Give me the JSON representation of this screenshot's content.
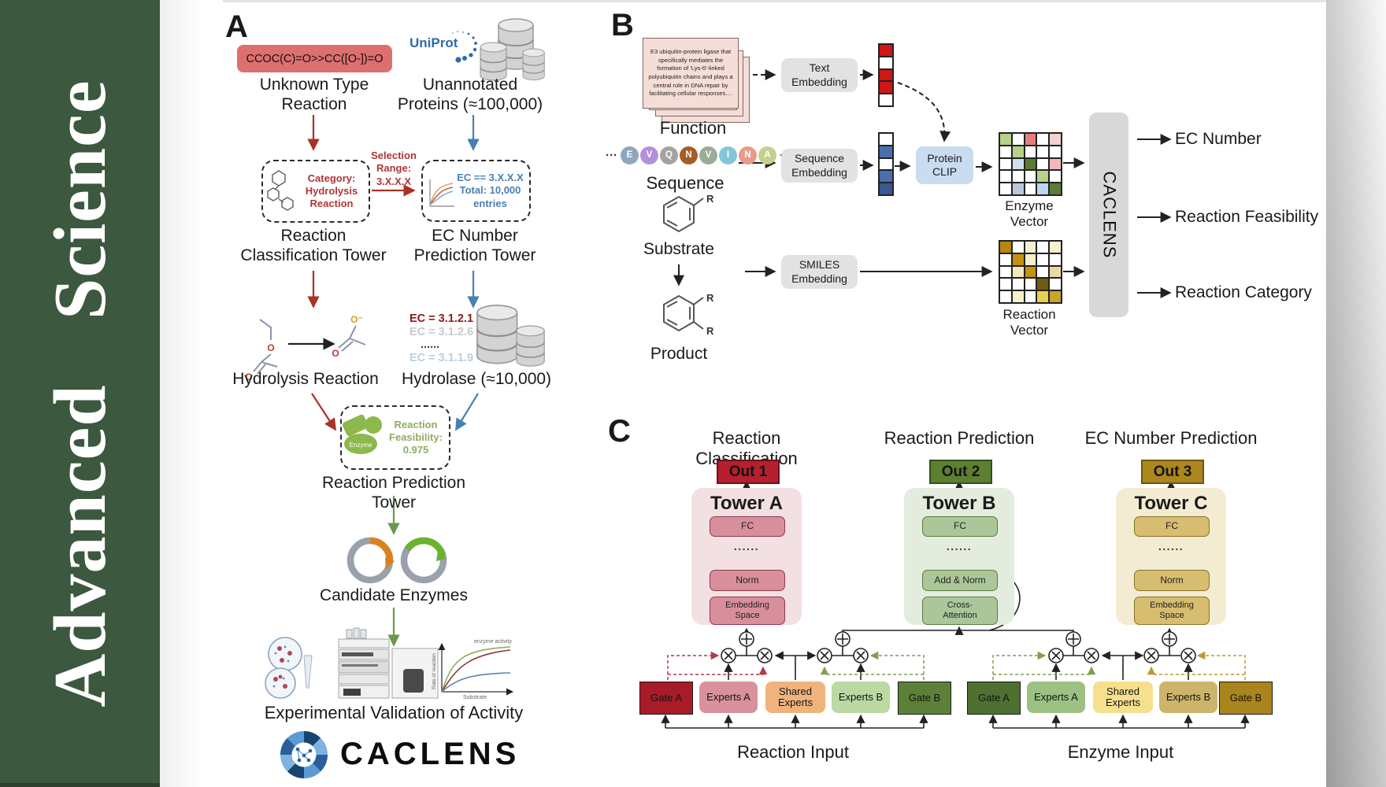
{
  "sidebar": {
    "journal_title": "Advanced Science"
  },
  "panelA": {
    "label": "A",
    "smiles_reaction": "CCOC(C)=O>>CC([O-])=O",
    "unknown_type_reaction": "Unknown Type Reaction",
    "uniprot_logo": "UniProt",
    "unannotated_proteins": "Unannotated Proteins (≈100,000)",
    "selection_range": "Selection Range: 3.X.X.X",
    "category_box": "Category: Hydrolysis Reaction",
    "ec_filter_box": "EC == 3.X.X.X Total: 10,000 entries",
    "reaction_classification_tower": "Reaction Classification Tower",
    "ec_number_prediction_tower": "EC Number Prediction Tower",
    "ec_list": [
      "EC = 3.1.2.1",
      "EC = 3.1.2.6",
      "......",
      "EC = 3.1.1.9"
    ],
    "hydrolysis_reaction": "Hydrolysis Reaction",
    "hydrolase": "Hydrolase (≈10,000)",
    "enzyme_badge": "Enzyme",
    "reaction_feasibility": "Reaction Feasibility: 0.975",
    "reaction_prediction_tower": "Reaction Prediction Tower",
    "candidate_enzymes": "Candidate Enzymes",
    "experimental_validation": "Experimental Validation of Activity",
    "caclens_wordmark": "CACLENS",
    "mini_chart": {
      "curve_label": "enzyme activity",
      "ylabel": "Rate of reaction",
      "xlabel": "Substrate"
    }
  },
  "panelB": {
    "label": "B",
    "function_text": "E3 ubiquitin-protein ligase that specifically mediates the formation of 'Lys-6'-linked polyubiquitin chains and plays a central role in DNA repair by facilitating cellular responses....",
    "function_label": "Function",
    "sequence_label": "Sequence",
    "ellipsis": "···",
    "residues": [
      {
        "letter": "E",
        "color": "#8ea7bd"
      },
      {
        "letter": "V",
        "color": "#b490dc"
      },
      {
        "letter": "Q",
        "color": "#a3a3a3"
      },
      {
        "letter": "N",
        "color": "#a55d28"
      },
      {
        "letter": "V",
        "color": "#9cab97"
      },
      {
        "letter": "I",
        "color": "#86c5da"
      },
      {
        "letter": "N",
        "color": "#e69b8b"
      },
      {
        "letter": "A",
        "color": "#c3d18e"
      }
    ],
    "substrate_label": "Substrate",
    "product_label": "Product",
    "r_group": "R",
    "text_embedding": "Text Embedding",
    "sequence_embedding": "Sequence Embedding",
    "smiles_embedding": "SMILES Embedding",
    "protein_clip": "Protein CLIP",
    "caclens_block": "CACLENS",
    "text_vector_cells": [
      "#d01616",
      "#ffffff",
      "#d01616",
      "#d01616",
      "#ffffff"
    ],
    "sequence_vector_cells": [
      "#ffffff",
      "#4a6fae",
      "#ffffff",
      "#4a6fae",
      "#39598f"
    ],
    "enzyme_vector": {
      "label": "Enzyme Vector",
      "cells": [
        [
          "#b7d189",
          "#ffffff",
          "#e57f7f",
          "#ffffff",
          "#f6cfd2"
        ],
        [
          "#ffffff",
          "#b7d189",
          "#ffffff",
          "#ffffff",
          "#ffffff"
        ],
        [
          "#ffffff",
          "#cfe0f2",
          "#5c7d31",
          "#ffffff",
          "#f2b9bd"
        ],
        [
          "#ffffff",
          "#ffffff",
          "#ffffff",
          "#b7d189",
          "#ffffff"
        ],
        [
          "#ffffff",
          "#bac7d8",
          "#ffffff",
          "#b9d7ef",
          "#5c7d31"
        ]
      ]
    },
    "reaction_vector": {
      "label": "Reaction Vector",
      "cells": [
        [
          "#b8860b",
          "#ffffff",
          "#f7efcd",
          "#ffffff",
          "#f7efcd"
        ],
        [
          "#ffffff",
          "#c49110",
          "#f7efcd",
          "#ffffff",
          "#ffffff"
        ],
        [
          "#ffffff",
          "#f3e8c0",
          "#c49110",
          "#ffffff",
          "#ead9a6"
        ],
        [
          "#ffffff",
          "#ffffff",
          "#ffffff",
          "#6f5a12",
          "#ffffff"
        ],
        [
          "#ffffff",
          "#f7efcd",
          "#ffffff",
          "#eace51",
          "#c9a42e"
        ]
      ]
    },
    "outputs": [
      "EC Number",
      "Reaction Feasibility",
      "Reaction Category"
    ]
  },
  "panelC": {
    "label": "C",
    "headers": [
      "Reaction Classification",
      "Reaction Prediction",
      "EC Number Prediction"
    ],
    "outs": [
      "Out 1",
      "Out 2",
      "Out 3"
    ],
    "towers": [
      {
        "title": "Tower A",
        "fc": "FC",
        "dots": "......",
        "mid": "Norm",
        "bottom": "Embedding Space"
      },
      {
        "title": "Tower B",
        "fc": "FC",
        "dots": "......",
        "mid": "Add & Norm",
        "bottom": "Cross-Attention"
      },
      {
        "title": "Tower C",
        "fc": "FC",
        "dots": "......",
        "mid": "Norm",
        "bottom": "Embedding Space"
      }
    ],
    "moe_labels": [
      "Gate A",
      "Experts A",
      "Shared Experts",
      "Experts B",
      "Gate B"
    ],
    "inputs": [
      "Reaction Input",
      "Enzyme Input"
    ]
  },
  "colors": {
    "sidebar_green": "#3c583e",
    "smiles_box": "#de6f6f",
    "red_arrow": "#a93226",
    "blue_arrow": "#4a7fb5",
    "green_arrow": "#6a994e",
    "out1": "#b51f2e",
    "out2": "#5c8030",
    "out3": "#ab871d",
    "gate_a_red": "#a81c28",
    "gate_b_green": "#5d8038",
    "gate_a_dark_green": "#4f7030",
    "gate_b_gold": "#aa851d",
    "ec_list_colors": [
      "#8b1a1a",
      "#c9c9c9",
      "#444444",
      "#b9cfe2"
    ]
  }
}
